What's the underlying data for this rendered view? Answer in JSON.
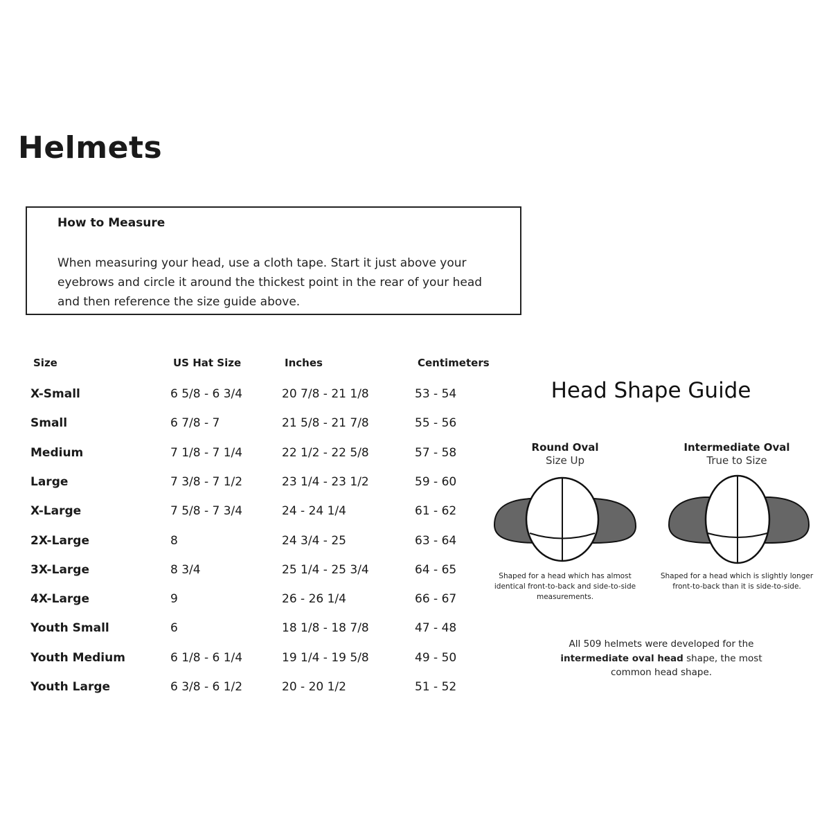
{
  "title": "Helmets",
  "measure": {
    "heading": "How to Measure",
    "text": "When measuring your head, use a cloth tape. Start it just above your eyebrows and circle it around the thickest point in the rear of your head and then reference the size guide above."
  },
  "table": {
    "headers": [
      "Size",
      "US Hat Size",
      "Inches",
      "Centimeters"
    ],
    "rows": [
      [
        "X-Small",
        "6 5/8 - 6 3/4",
        "20 7/8 - 21 1/8",
        "53 - 54"
      ],
      [
        "Small",
        "6 7/8 - 7",
        "21 5/8 - 21 7/8",
        "55 - 56"
      ],
      [
        "Medium",
        "7 1/8 - 7 1/4",
        "22 1/2 - 22 5/8",
        "57 - 58"
      ],
      [
        "Large",
        "7 3/8 - 7 1/2",
        "23 1/4 - 23 1/2",
        "59 - 60"
      ],
      [
        "X-Large",
        "7 5/8 - 7 3/4",
        "24 - 24 1/4",
        "61 - 62"
      ],
      [
        "2X-Large",
        "8",
        "24 3/4 - 25",
        "63 - 64"
      ],
      [
        "3X-Large",
        "8 3/4",
        "25 1/4 - 25 3/4",
        "64 - 65"
      ],
      [
        "4X-Large",
        "9",
        "26 - 26 1/4",
        "66 - 67"
      ],
      [
        "Youth Small",
        "6",
        "18 1/8 - 18 7/8",
        "47 - 48"
      ],
      [
        "Youth Medium",
        "6 1/8 - 6 1/4",
        "19 1/4 - 19 5/8",
        "49 - 50"
      ],
      [
        "Youth Large",
        "6 3/8 - 6 1/2",
        "20 - 20 1/2",
        "51 - 52"
      ]
    ]
  },
  "guide": {
    "title": "Head Shape Guide",
    "shapes": [
      {
        "name": "Round Oval",
        "fit": "Size Up",
        "description": "Shaped for a head which has almost identical front-to-back and side-to-side measurements."
      },
      {
        "name": "Intermediate Oval",
        "fit": "True to Size",
        "description": "Shaped for a head which is slightly longer front-to-back than it is side-to-side."
      }
    ],
    "note_pre": "All 509 helmets were developed for the",
    "note_bold": "intermediate oval head",
    "note_post": " shape, the most common head shape."
  },
  "colors": {
    "brim": "#666666",
    "outline": "#111111"
  }
}
